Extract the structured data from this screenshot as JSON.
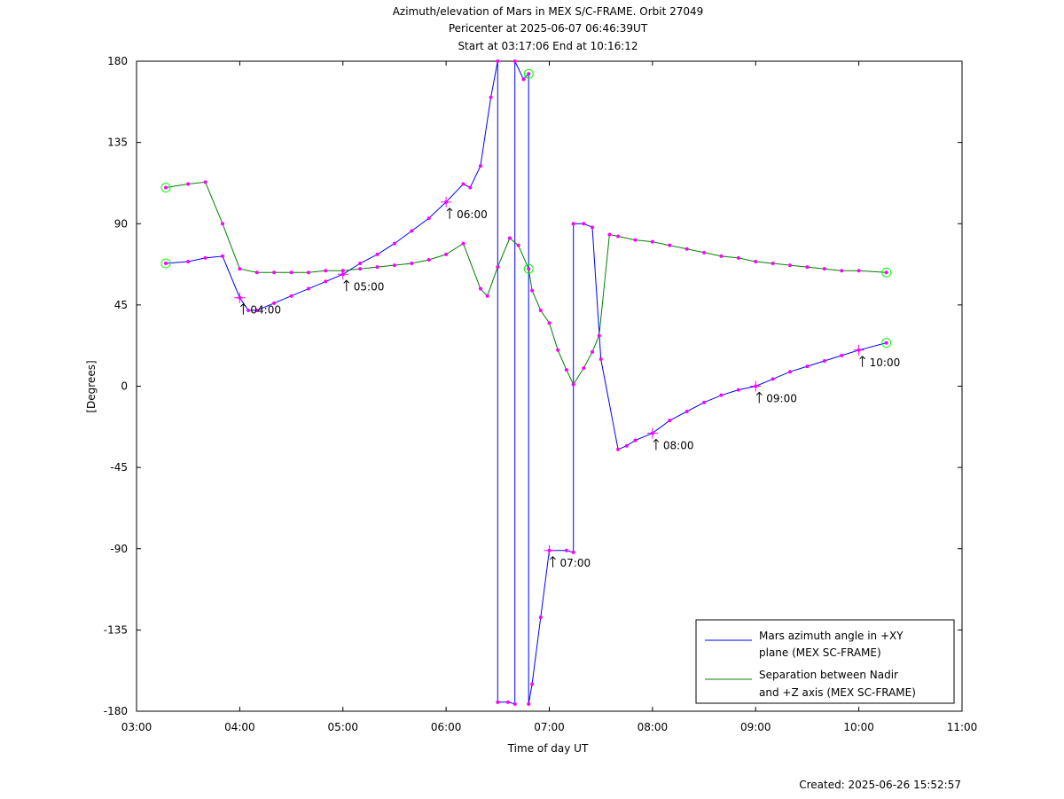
{
  "chart_data": {
    "type": "line",
    "title_lines": [
      "Azimuth/elevation of Mars in MEX S/C-FRAME.  Orbit 27049",
      "Pericenter at 2025-06-07 06:46:39UT",
      "Start at 03:17:06 End at 10:16:12"
    ],
    "xlabel": "Time of day UT",
    "ylabel": "[Degrees]",
    "footer": "Created: 2025-06-26 15:52:57",
    "xlim": [
      "03:00",
      "11:00"
    ],
    "ylim": [
      -180,
      180
    ],
    "grid": false,
    "x_ticks": [
      "03:00",
      "04:00",
      "05:00",
      "06:00",
      "07:00",
      "08:00",
      "09:00",
      "10:00",
      "11:00"
    ],
    "y_ticks": [
      180,
      135,
      90,
      45,
      0,
      -45,
      -90,
      -135,
      -180
    ],
    "legend_position": "bottom-right",
    "legend": [
      {
        "series": 0,
        "lines": [
          "Mars azimuth angle in +XY",
          "plane (MEX SC-FRAME)"
        ]
      },
      {
        "series": 1,
        "lines": [
          "Separation between Nadir",
          "and +Z axis (MEX SC-FRAME)"
        ]
      }
    ],
    "series": [
      {
        "name": "Mars azimuth angle in +XY plane (MEX SC-FRAME)",
        "color": "#0000ff",
        "x": [
          "03:17",
          "03:30",
          "03:40",
          "03:50",
          "04:00",
          "04:05",
          "04:10",
          "04:20",
          "04:30",
          "04:40",
          "04:50",
          "05:00",
          "05:10",
          "05:20",
          "05:30",
          "05:40",
          "05:50",
          "06:00",
          "06:10",
          "06:14",
          "06:20",
          "06:26",
          "06:30",
          "06:30",
          "06:36",
          "06:40",
          "06:40",
          "06:45",
          "06:48",
          "06:48",
          "06:50",
          "06:55",
          "07:00",
          "07:10",
          "07:14",
          "07:14",
          "07:20",
          "07:25",
          "07:30",
          "07:40",
          "07:45",
          "07:50",
          "08:00",
          "08:10",
          "08:20",
          "08:30",
          "08:40",
          "08:50",
          "09:00",
          "09:10",
          "09:20",
          "09:30",
          "09:40",
          "09:50",
          "10:00",
          "10:16"
        ],
        "y": [
          68,
          69,
          71,
          72,
          49,
          42,
          42,
          46,
          50,
          54,
          58,
          62,
          68,
          73,
          79,
          86,
          93,
          102,
          112,
          110,
          122,
          160,
          180,
          -175,
          -175,
          -176,
          180,
          170,
          173,
          -176,
          -165,
          -128,
          -91,
          -91,
          -92,
          90,
          90,
          88,
          15,
          -35,
          -33,
          -30,
          -26,
          -19,
          -14,
          -9,
          -5,
          -2,
          0,
          4,
          8,
          11,
          14,
          17,
          20,
          24
        ]
      },
      {
        "name": "Separation between Nadir and +Z axis (MEX SC-FRAME)",
        "color": "#008000",
        "x": [
          "03:17",
          "03:30",
          "03:40",
          "03:50",
          "04:00",
          "04:10",
          "04:20",
          "04:30",
          "04:40",
          "04:50",
          "05:00",
          "05:10",
          "05:20",
          "05:30",
          "05:40",
          "05:50",
          "06:00",
          "06:10",
          "06:20",
          "06:24",
          "06:30",
          "06:37",
          "06:42",
          "06:48",
          "06:50",
          "06:55",
          "07:00",
          "07:05",
          "07:10",
          "07:14",
          "07:20",
          "07:25",
          "07:29",
          "07:35",
          "07:40",
          "07:50",
          "08:00",
          "08:10",
          "08:20",
          "08:30",
          "08:40",
          "08:50",
          "09:00",
          "09:10",
          "09:20",
          "09:30",
          "09:40",
          "09:50",
          "10:00",
          "10:16"
        ],
        "y": [
          110,
          112,
          113,
          90,
          65,
          63,
          63,
          63,
          63,
          64,
          64,
          65,
          66,
          67,
          68,
          70,
          73,
          79,
          54,
          50,
          66,
          82,
          78,
          65,
          53,
          42,
          35,
          20,
          9,
          1,
          10,
          19,
          28,
          84,
          83,
          81,
          80,
          78,
          76,
          74,
          72,
          71,
          69,
          68,
          67,
          66,
          65,
          64,
          64,
          63
        ]
      }
    ],
    "time_annotations": [
      {
        "label": "04:00",
        "x": "04:00",
        "y": 49
      },
      {
        "label": "05:00",
        "x": "05:00",
        "y": 62
      },
      {
        "label": "06:00",
        "x": "06:00",
        "y": 102
      },
      {
        "label": "07:00",
        "x": "07:00",
        "y": -91
      },
      {
        "label": "08:00",
        "x": "08:00",
        "y": -26
      },
      {
        "label": "09:00",
        "x": "09:00",
        "y": 0
      },
      {
        "label": "10:00",
        "x": "10:00",
        "y": 20
      }
    ],
    "start_end_markers": [
      {
        "x": "03:17",
        "y": 68
      },
      {
        "x": "10:16",
        "y": 24
      },
      {
        "x": "03:17",
        "y": 110
      },
      {
        "x": "10:16",
        "y": 63
      },
      {
        "x": "06:48",
        "y": 173
      },
      {
        "x": "06:48",
        "y": 65
      }
    ]
  }
}
